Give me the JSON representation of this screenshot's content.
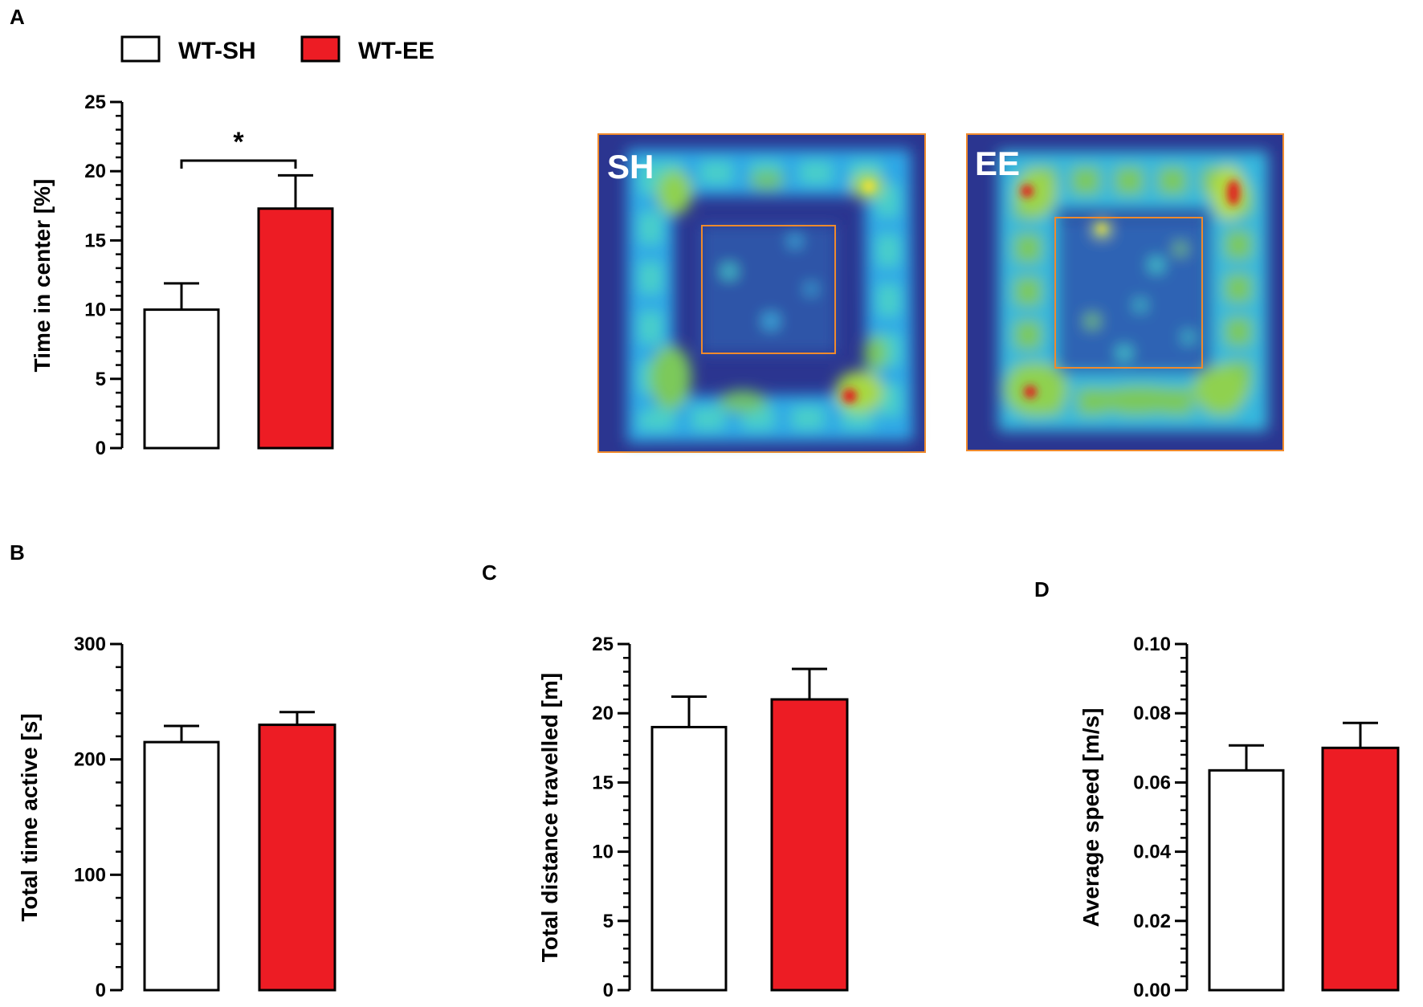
{
  "figure": {
    "legend": {
      "items": [
        {
          "label": "WT-SH",
          "color": "#ffffff"
        },
        {
          "label": "WT-EE",
          "color": "#ed1c24"
        }
      ]
    },
    "colors": {
      "sh": "#ffffff",
      "ee": "#ed1c24",
      "stroke": "#000000",
      "arena_bg": "#2b3590",
      "zone": "#f08a2c"
    },
    "heatmaps": [
      {
        "letter": "",
        "label": "SH",
        "center_zone": "orange-square"
      },
      {
        "letter": "",
        "label": "EE",
        "center_zone": "orange-square"
      }
    ]
  },
  "chart_data": [
    {
      "id": "A",
      "panel_letter": "A",
      "type": "bar",
      "categories": [
        "WT-SH",
        "WT-EE"
      ],
      "values": [
        10.0,
        17.3
      ],
      "errors": [
        1.9,
        2.4
      ],
      "ylabel": "Time in center [%]",
      "ylim": [
        0,
        25
      ],
      "yticks": [
        "0",
        "5",
        "10",
        "15",
        "20",
        "25"
      ],
      "yticks_values": [
        0,
        5,
        10,
        15,
        20,
        25
      ],
      "minor_per_major": 5,
      "significance": {
        "label": "*",
        "between": [
          0,
          1
        ]
      }
    },
    {
      "id": "B",
      "panel_letter": "B",
      "type": "bar",
      "categories": [
        "WT-SH",
        "WT-EE"
      ],
      "values": [
        215,
        230
      ],
      "errors": [
        14,
        11
      ],
      "ylabel": "Total time active [s]",
      "ylim": [
        0,
        300
      ],
      "yticks": [
        "0",
        "100",
        "200",
        "300"
      ],
      "yticks_values": [
        0,
        100,
        200,
        300
      ],
      "minor_per_major": 5
    },
    {
      "id": "C",
      "panel_letter": "C",
      "type": "bar",
      "categories": [
        "WT-SH",
        "WT-EE"
      ],
      "values": [
        19.0,
        21.0
      ],
      "errors": [
        2.2,
        2.2
      ],
      "ylabel": "Total distance travelled [m]",
      "ylim": [
        0,
        25
      ],
      "yticks": [
        "0",
        "5",
        "10",
        "15",
        "20",
        "25"
      ],
      "yticks_values": [
        0,
        5,
        10,
        15,
        20,
        25
      ],
      "minor_per_major": 5
    },
    {
      "id": "D",
      "panel_letter": "D",
      "type": "bar",
      "categories": [
        "WT-SH",
        "WT-EE"
      ],
      "values": [
        0.0635,
        0.07
      ],
      "errors": [
        0.0072,
        0.0072
      ],
      "ylabel": "Average speed [m/s]",
      "ylim": [
        0,
        0.1
      ],
      "yticks": [
        "0.00",
        "0.02",
        "0.04",
        "0.06",
        "0.08",
        "0.10"
      ],
      "yticks_values": [
        0,
        0.02,
        0.04,
        0.06,
        0.08,
        0.1
      ],
      "minor_per_major": 5
    }
  ]
}
